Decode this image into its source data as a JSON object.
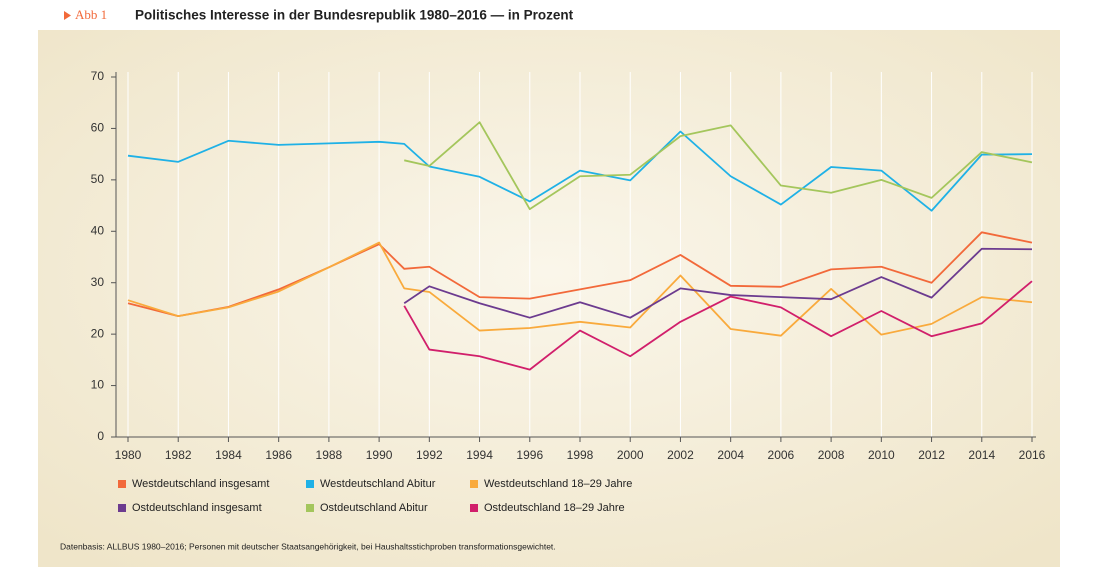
{
  "chart_data": {
    "type": "line",
    "figure_label": "Abb 1",
    "title": "Politisches Interesse in der Bundesrepublik 1980–2016 — in Prozent",
    "note": "Datenbasis: ALLBUS 1980–2016; Personen mit deutscher Staatsangehörigkeit, bei Haushaltsstichproben transformationsgewichtet.",
    "x": [
      1980,
      1982,
      1984,
      1986,
      1988,
      1990,
      1991,
      1992,
      1994,
      1996,
      1998,
      2000,
      2002,
      2004,
      2006,
      2008,
      2010,
      2012,
      2014,
      2016
    ],
    "xlim": [
      1980,
      2016
    ],
    "xticks": [
      1980,
      1982,
      1984,
      1986,
      1988,
      1990,
      1992,
      1994,
      1996,
      1998,
      2000,
      2002,
      2004,
      2006,
      2008,
      2010,
      2012,
      2014,
      2016
    ],
    "ylim": [
      0,
      70
    ],
    "yticks": [
      0,
      10,
      20,
      30,
      40,
      50,
      60,
      70
    ],
    "grid": "x",
    "series": [
      {
        "name": "Westdeutschland insgesamt",
        "color": "#f2693a",
        "values": [
          26.0,
          23.5,
          25.3,
          28.7,
          33.0,
          37.5,
          32.7,
          33.1,
          27.2,
          26.9,
          28.7,
          30.5,
          35.4,
          29.4,
          29.2,
          32.6,
          33.1,
          30.0,
          39.8,
          37.8
        ]
      },
      {
        "name": "Westdeutschland Abitur",
        "color": "#1fb1e6",
        "values": [
          54.7,
          53.5,
          57.6,
          56.8,
          57.1,
          57.4,
          57.0,
          52.6,
          50.6,
          45.8,
          51.8,
          49.9,
          59.4,
          50.7,
          45.2,
          52.5,
          51.8,
          44.0,
          54.9,
          55.0
        ]
      },
      {
        "name": "Westdeutschland 18–29 Jahre",
        "color": "#f9aa3c",
        "values": [
          26.6,
          23.5,
          25.2,
          28.3,
          33.0,
          37.8,
          28.9,
          28.2,
          20.7,
          21.2,
          22.4,
          21.3,
          31.4,
          21.0,
          19.7,
          28.8,
          19.9,
          22.0,
          27.2,
          26.2
        ]
      },
      {
        "name": "Ostdeutschland insgesamt",
        "color": "#6c3b8f",
        "values": [
          null,
          null,
          null,
          null,
          null,
          null,
          26.0,
          29.3,
          26.0,
          23.2,
          26.2,
          23.2,
          28.9,
          27.6,
          27.2,
          26.8,
          31.1,
          27.1,
          36.6,
          36.5
        ]
      },
      {
        "name": "Ostdeutschland Abitur",
        "color": "#a4c65c",
        "values": [
          null,
          null,
          null,
          null,
          null,
          null,
          53.8,
          52.7,
          61.2,
          44.3,
          50.7,
          51.0,
          58.5,
          60.6,
          48.9,
          47.5,
          50.0,
          46.5,
          55.4,
          53.4
        ]
      },
      {
        "name": "Ostdeutschland 18–29 Jahre",
        "color": "#d11f6b",
        "values": [
          null,
          null,
          null,
          null,
          null,
          null,
          25.5,
          17.0,
          15.7,
          13.1,
          20.7,
          15.7,
          22.4,
          27.3,
          25.2,
          19.6,
          24.5,
          19.6,
          22.1,
          30.3
        ]
      }
    ]
  }
}
